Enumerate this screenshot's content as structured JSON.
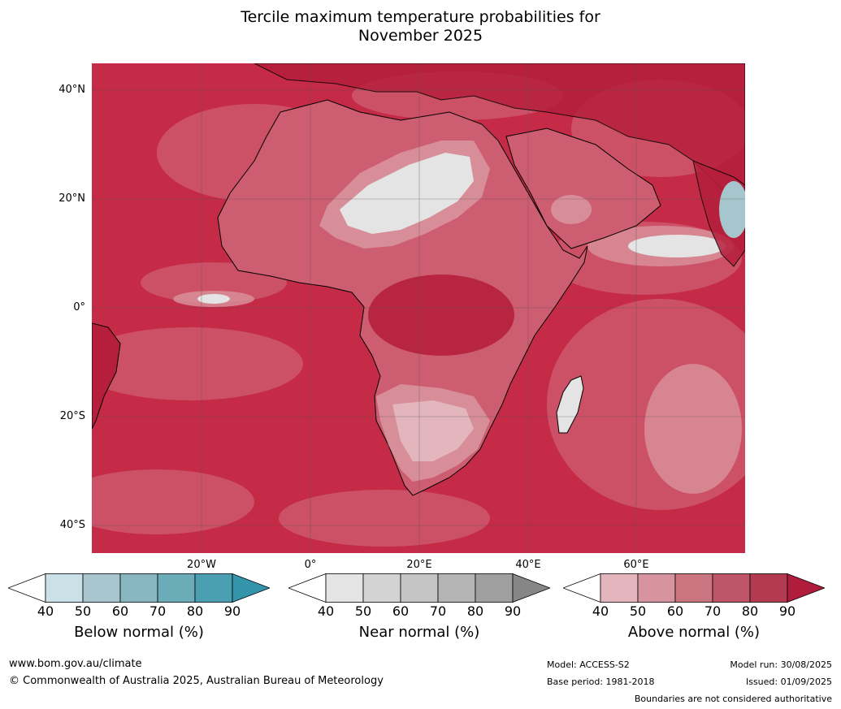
{
  "title_line1": "Tercile maximum temperature probabilities for",
  "title_line2": "November 2025",
  "map": {
    "lat_labels": [
      "40°N",
      "20°N",
      "0°",
      "20°S",
      "40°S"
    ],
    "lon_labels": [
      "20°W",
      "0°",
      "20°E",
      "40°E",
      "60°E"
    ],
    "colors": {
      "ocean_base": "#c52a47",
      "deep_red": "#b51f3c",
      "mid_red": "#cd5d70",
      "light_red": "#d88e99",
      "pale_red": "#e3b6bd",
      "near_light": "#e4e4e4",
      "near_mid": "#d3d3d3",
      "below_light": "#a6c6cd"
    }
  },
  "colorbars": [
    {
      "label": "Below normal (%)",
      "ticks": [
        "40",
        "50",
        "60",
        "70",
        "80",
        "90"
      ],
      "colors": [
        "#ffffff",
        "#c9e1e7",
        "#a7c5cc",
        "#88b7c2",
        "#6aacb8",
        "#4a9fb0",
        "#3494aa"
      ]
    },
    {
      "label": "Near normal (%)",
      "ticks": [
        "40",
        "50",
        "60",
        "70",
        "80",
        "90"
      ],
      "colors": [
        "#ffffff",
        "#e4e4e4",
        "#d3d3d3",
        "#c5c5c5",
        "#b4b4b4",
        "#a0a0a0",
        "#868686"
      ]
    },
    {
      "label": "Above normal (%)",
      "ticks": [
        "40",
        "50",
        "60",
        "70",
        "80",
        "90"
      ],
      "colors": [
        "#ffffff",
        "#e3b6bd",
        "#d8949e",
        "#cb7580",
        "#bf5568",
        "#b33a50",
        "#b01d3c"
      ]
    }
  ],
  "footer": {
    "website": "www.bom.gov.au/climate",
    "copyright": "© Commonwealth of Australia 2025, Australian Bureau of Meteorology",
    "model": "Model: ACCESS-S2",
    "base_period": "Base period: 1981-2018",
    "model_run": "Model run: 30/08/2025",
    "issued": "Issued: 01/09/2025",
    "disclaimer": "Boundaries are not considered authoritative"
  }
}
